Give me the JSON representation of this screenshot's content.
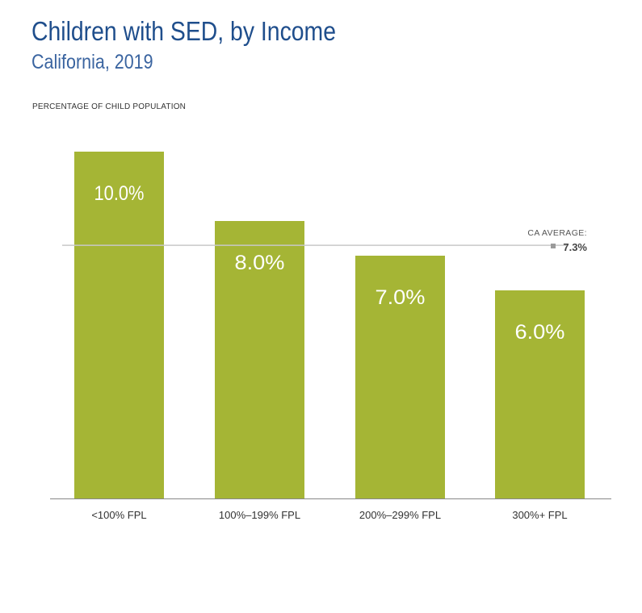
{
  "header": {
    "title": "Children with SED, by Income",
    "subtitle": "California, 2019",
    "axis_label": "PERCENTAGE OF CHILD POPULATION"
  },
  "chart_data": {
    "type": "bar",
    "title": "Children with SED, by Income",
    "subtitle": "California, 2019",
    "ylabel": "PERCENTAGE OF CHILD POPULATION",
    "xlabel": "",
    "categories": [
      "<100% FPL",
      "100%–199% FPL",
      "200%–299% FPL",
      "300%+ FPL"
    ],
    "values": [
      10.0,
      8.0,
      7.0,
      6.0
    ],
    "data_labels": [
      "10.0%",
      "8.0%",
      "7.0%",
      "6.0%"
    ],
    "ylim": [
      0,
      10
    ],
    "grid": false,
    "legend": "none",
    "reference_line": {
      "label": "CA AVERAGE:",
      "value": 7.3,
      "value_label": "7.3%"
    },
    "colors": {
      "bar": "#a5b535",
      "bar_label": "#ffffff",
      "reference_line": "#c8c8c8",
      "reference_marker": "#9a9a9a",
      "axis": "#888888",
      "tick_label": "#333333"
    }
  }
}
